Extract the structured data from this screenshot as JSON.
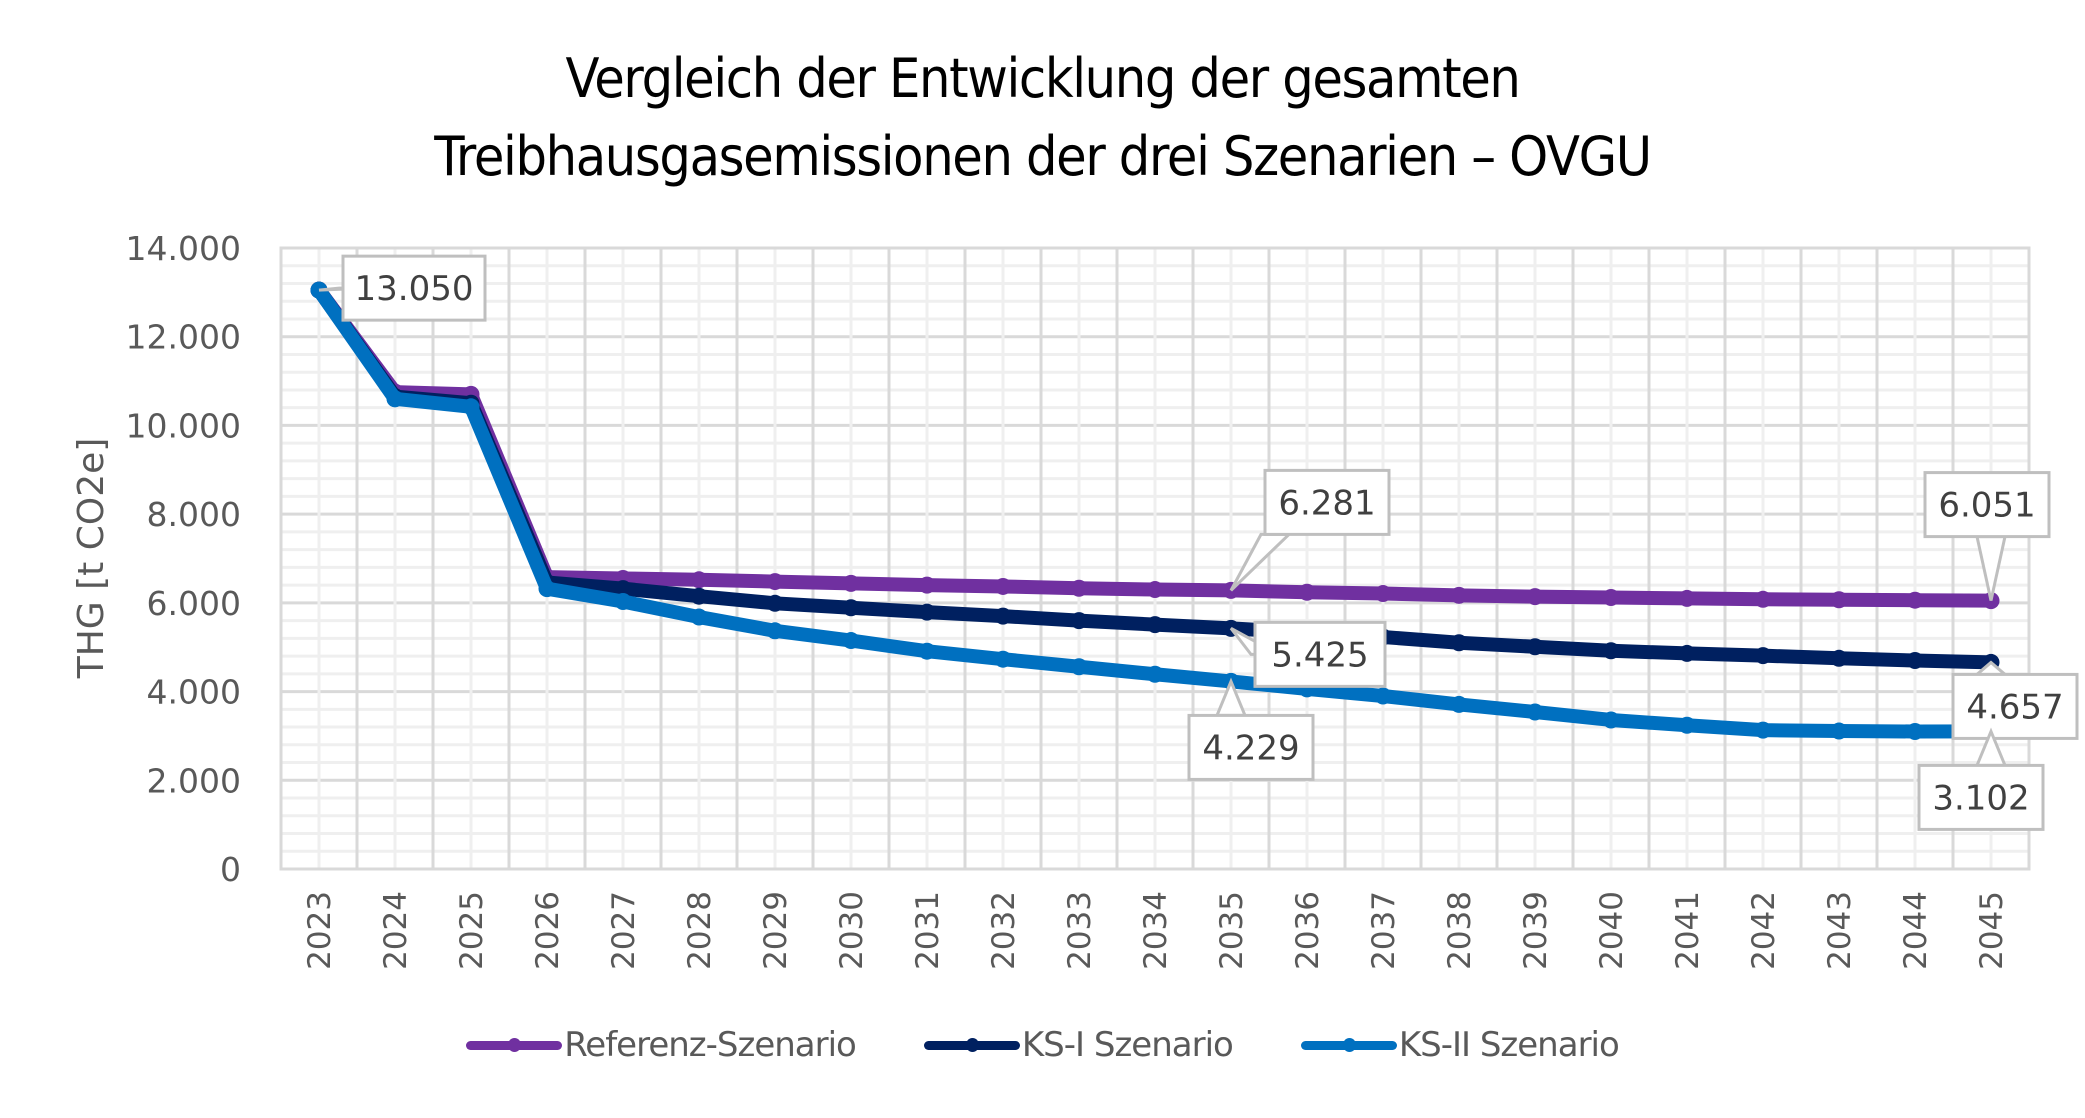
{
  "chart_data": {
    "type": "line",
    "title": "Vergleich der Entwicklung der gesamten Treibhausgasemissionen der drei Szenarien – OVGU",
    "title_lines": [
      "Vergleich der Entwicklung der gesamten",
      "Treibhausgasemissionen der drei Szenarien – OVGU"
    ],
    "xlabel": "",
    "ylabel": "THG [t CO2e]",
    "ylim": [
      0,
      14000
    ],
    "y_ticks": [
      0,
      2000,
      4000,
      6000,
      8000,
      10000,
      12000,
      14000
    ],
    "y_tick_labels": [
      "0",
      "2.000",
      "4.000",
      "6.000",
      "8.000",
      "10.000",
      "12.000",
      "14.000"
    ],
    "y_minor_step": 400,
    "grid": true,
    "legend_position": "bottom",
    "categories": [
      "2023",
      "2024",
      "2025",
      "2026",
      "2027",
      "2028",
      "2029",
      "2030",
      "2031",
      "2032",
      "2033",
      "2034",
      "2035",
      "2036",
      "2037",
      "2038",
      "2039",
      "2040",
      "2041",
      "2042",
      "2043",
      "2044",
      "2045"
    ],
    "series": [
      {
        "name": "Referenz-Szenario",
        "color": "#7030A0",
        "values": [
          13050,
          10750,
          10700,
          6580,
          6550,
          6520,
          6480,
          6440,
          6400,
          6370,
          6330,
          6300,
          6281,
          6240,
          6210,
          6170,
          6140,
          6120,
          6100,
          6080,
          6070,
          6060,
          6051
        ]
      },
      {
        "name": "KS-I Szenario",
        "color": "#002060",
        "values": [
          13050,
          10650,
          10500,
          6460,
          6320,
          6150,
          5990,
          5890,
          5790,
          5700,
          5600,
          5510,
          5425,
          5330,
          5230,
          5100,
          5010,
          4920,
          4860,
          4810,
          4750,
          4700,
          4657
        ]
      },
      {
        "name": "KS-II Szenario",
        "color": "#0070C0",
        "values": [
          13050,
          10600,
          10420,
          6320,
          6030,
          5680,
          5370,
          5150,
          4910,
          4730,
          4560,
          4390,
          4229,
          4060,
          3900,
          3710,
          3540,
          3360,
          3240,
          3130,
          3110,
          3100,
          3102
        ]
      }
    ],
    "data_labels": [
      {
        "series": 2,
        "index": 0,
        "text": "13.050",
        "placement": "right"
      },
      {
        "series": 0,
        "index": 12,
        "text": "6.281",
        "placement": "above-right"
      },
      {
        "series": 1,
        "index": 12,
        "text": "5.425",
        "placement": "right"
      },
      {
        "series": 2,
        "index": 12,
        "text": "4.229",
        "placement": "below"
      },
      {
        "series": 0,
        "index": 22,
        "text": "6.051",
        "placement": "above"
      },
      {
        "series": 1,
        "index": 22,
        "text": "4.657",
        "placement": "below-right"
      },
      {
        "series": 2,
        "index": 22,
        "text": "3.102",
        "placement": "below"
      }
    ]
  }
}
